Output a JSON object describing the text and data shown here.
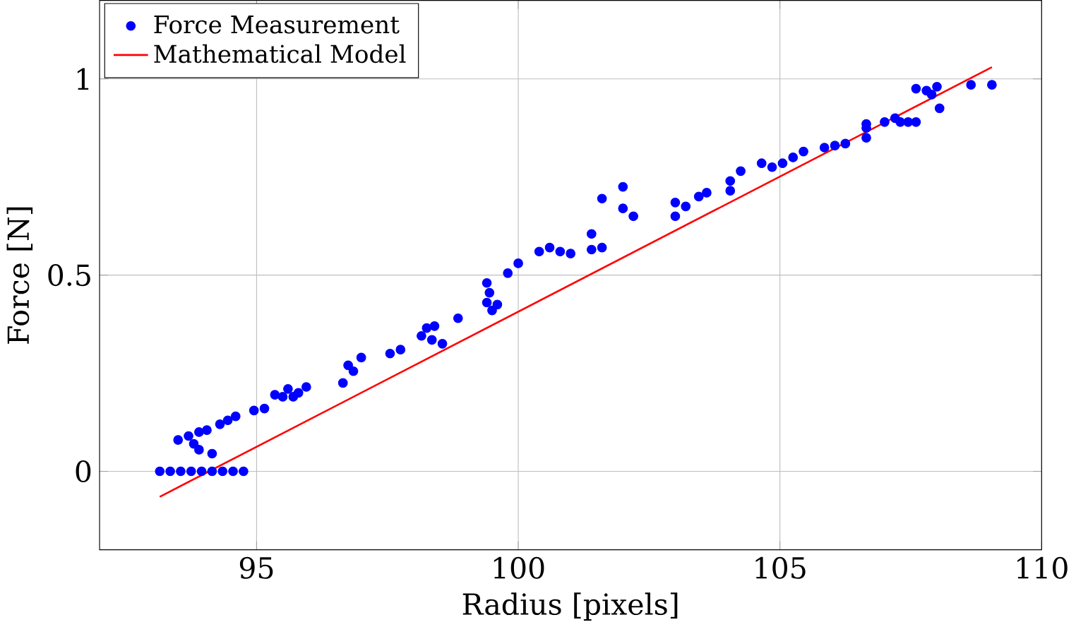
{
  "chart_data": {
    "type": "scatter",
    "xlabel": "Radius [pixels]",
    "ylabel": "Force [N]",
    "xlim": [
      92,
      110
    ],
    "ylim": [
      -0.2,
      1.2
    ],
    "xticks": [
      95,
      100,
      105,
      110
    ],
    "yticks": [
      0,
      0.5,
      1
    ],
    "grid": true,
    "legend": "top left",
    "marker": "circle",
    "series": [
      {
        "name": "Force Measurement",
        "type": "scatter",
        "color": "#0000ff",
        "x": [
          93.15,
          93.35,
          93.55,
          93.75,
          93.95,
          94.15,
          94.35,
          94.55,
          94.75,
          93.5,
          93.7,
          93.9,
          94.05,
          94.3,
          94.45,
          94.6,
          93.8,
          93.9,
          94.15,
          94.95,
          95.15,
          95.35,
          95.5,
          95.6,
          95.7,
          95.8,
          95.95,
          96.65,
          96.75,
          96.85,
          97.0,
          97.55,
          97.75,
          98.15,
          98.25,
          98.35,
          98.4,
          98.55,
          98.85,
          99.4,
          99.45,
          99.5,
          99.6,
          99.4,
          99.8,
          100.0,
          100.4,
          100.6,
          100.8,
          101.0,
          101.4,
          101.4,
          101.6,
          101.6,
          102.0,
          102.0,
          102.2,
          103.0,
          103.0,
          103.2,
          103.45,
          103.6,
          104.05,
          104.05,
          104.25,
          104.65,
          104.85,
          105.05,
          105.25,
          105.45,
          105.85,
          106.05,
          106.25,
          106.65,
          106.65,
          106.65,
          107.0,
          107.2,
          107.3,
          107.45,
          107.6,
          107.6,
          107.8,
          107.9,
          108.0,
          108.05,
          108.65,
          109.05
        ],
        "values": [
          0,
          0,
          0,
          0,
          0,
          0,
          0,
          0,
          0,
          0.08,
          0.09,
          0.1,
          0.105,
          0.12,
          0.13,
          0.14,
          0.07,
          0.055,
          0.045,
          0.155,
          0.16,
          0.195,
          0.19,
          0.21,
          0.19,
          0.2,
          0.215,
          0.225,
          0.27,
          0.255,
          0.29,
          0.3,
          0.31,
          0.345,
          0.365,
          0.335,
          0.37,
          0.325,
          0.39,
          0.43,
          0.455,
          0.41,
          0.425,
          0.48,
          0.505,
          0.53,
          0.56,
          0.57,
          0.56,
          0.555,
          0.605,
          0.565,
          0.57,
          0.695,
          0.725,
          0.67,
          0.65,
          0.685,
          0.65,
          0.675,
          0.7,
          0.71,
          0.715,
          0.74,
          0.765,
          0.785,
          0.775,
          0.785,
          0.8,
          0.815,
          0.825,
          0.83,
          0.835,
          0.85,
          0.875,
          0.885,
          0.89,
          0.9,
          0.89,
          0.89,
          0.89,
          0.975,
          0.97,
          0.96,
          0.98,
          0.925,
          0.985,
          0.985
        ]
      },
      {
        "name": "Mathematical Model",
        "type": "line",
        "marker": "none",
        "color": "#ff0000",
        "x": [
          93.15,
          109.05
        ],
        "values": [
          -0.065,
          1.03
        ]
      }
    ]
  }
}
